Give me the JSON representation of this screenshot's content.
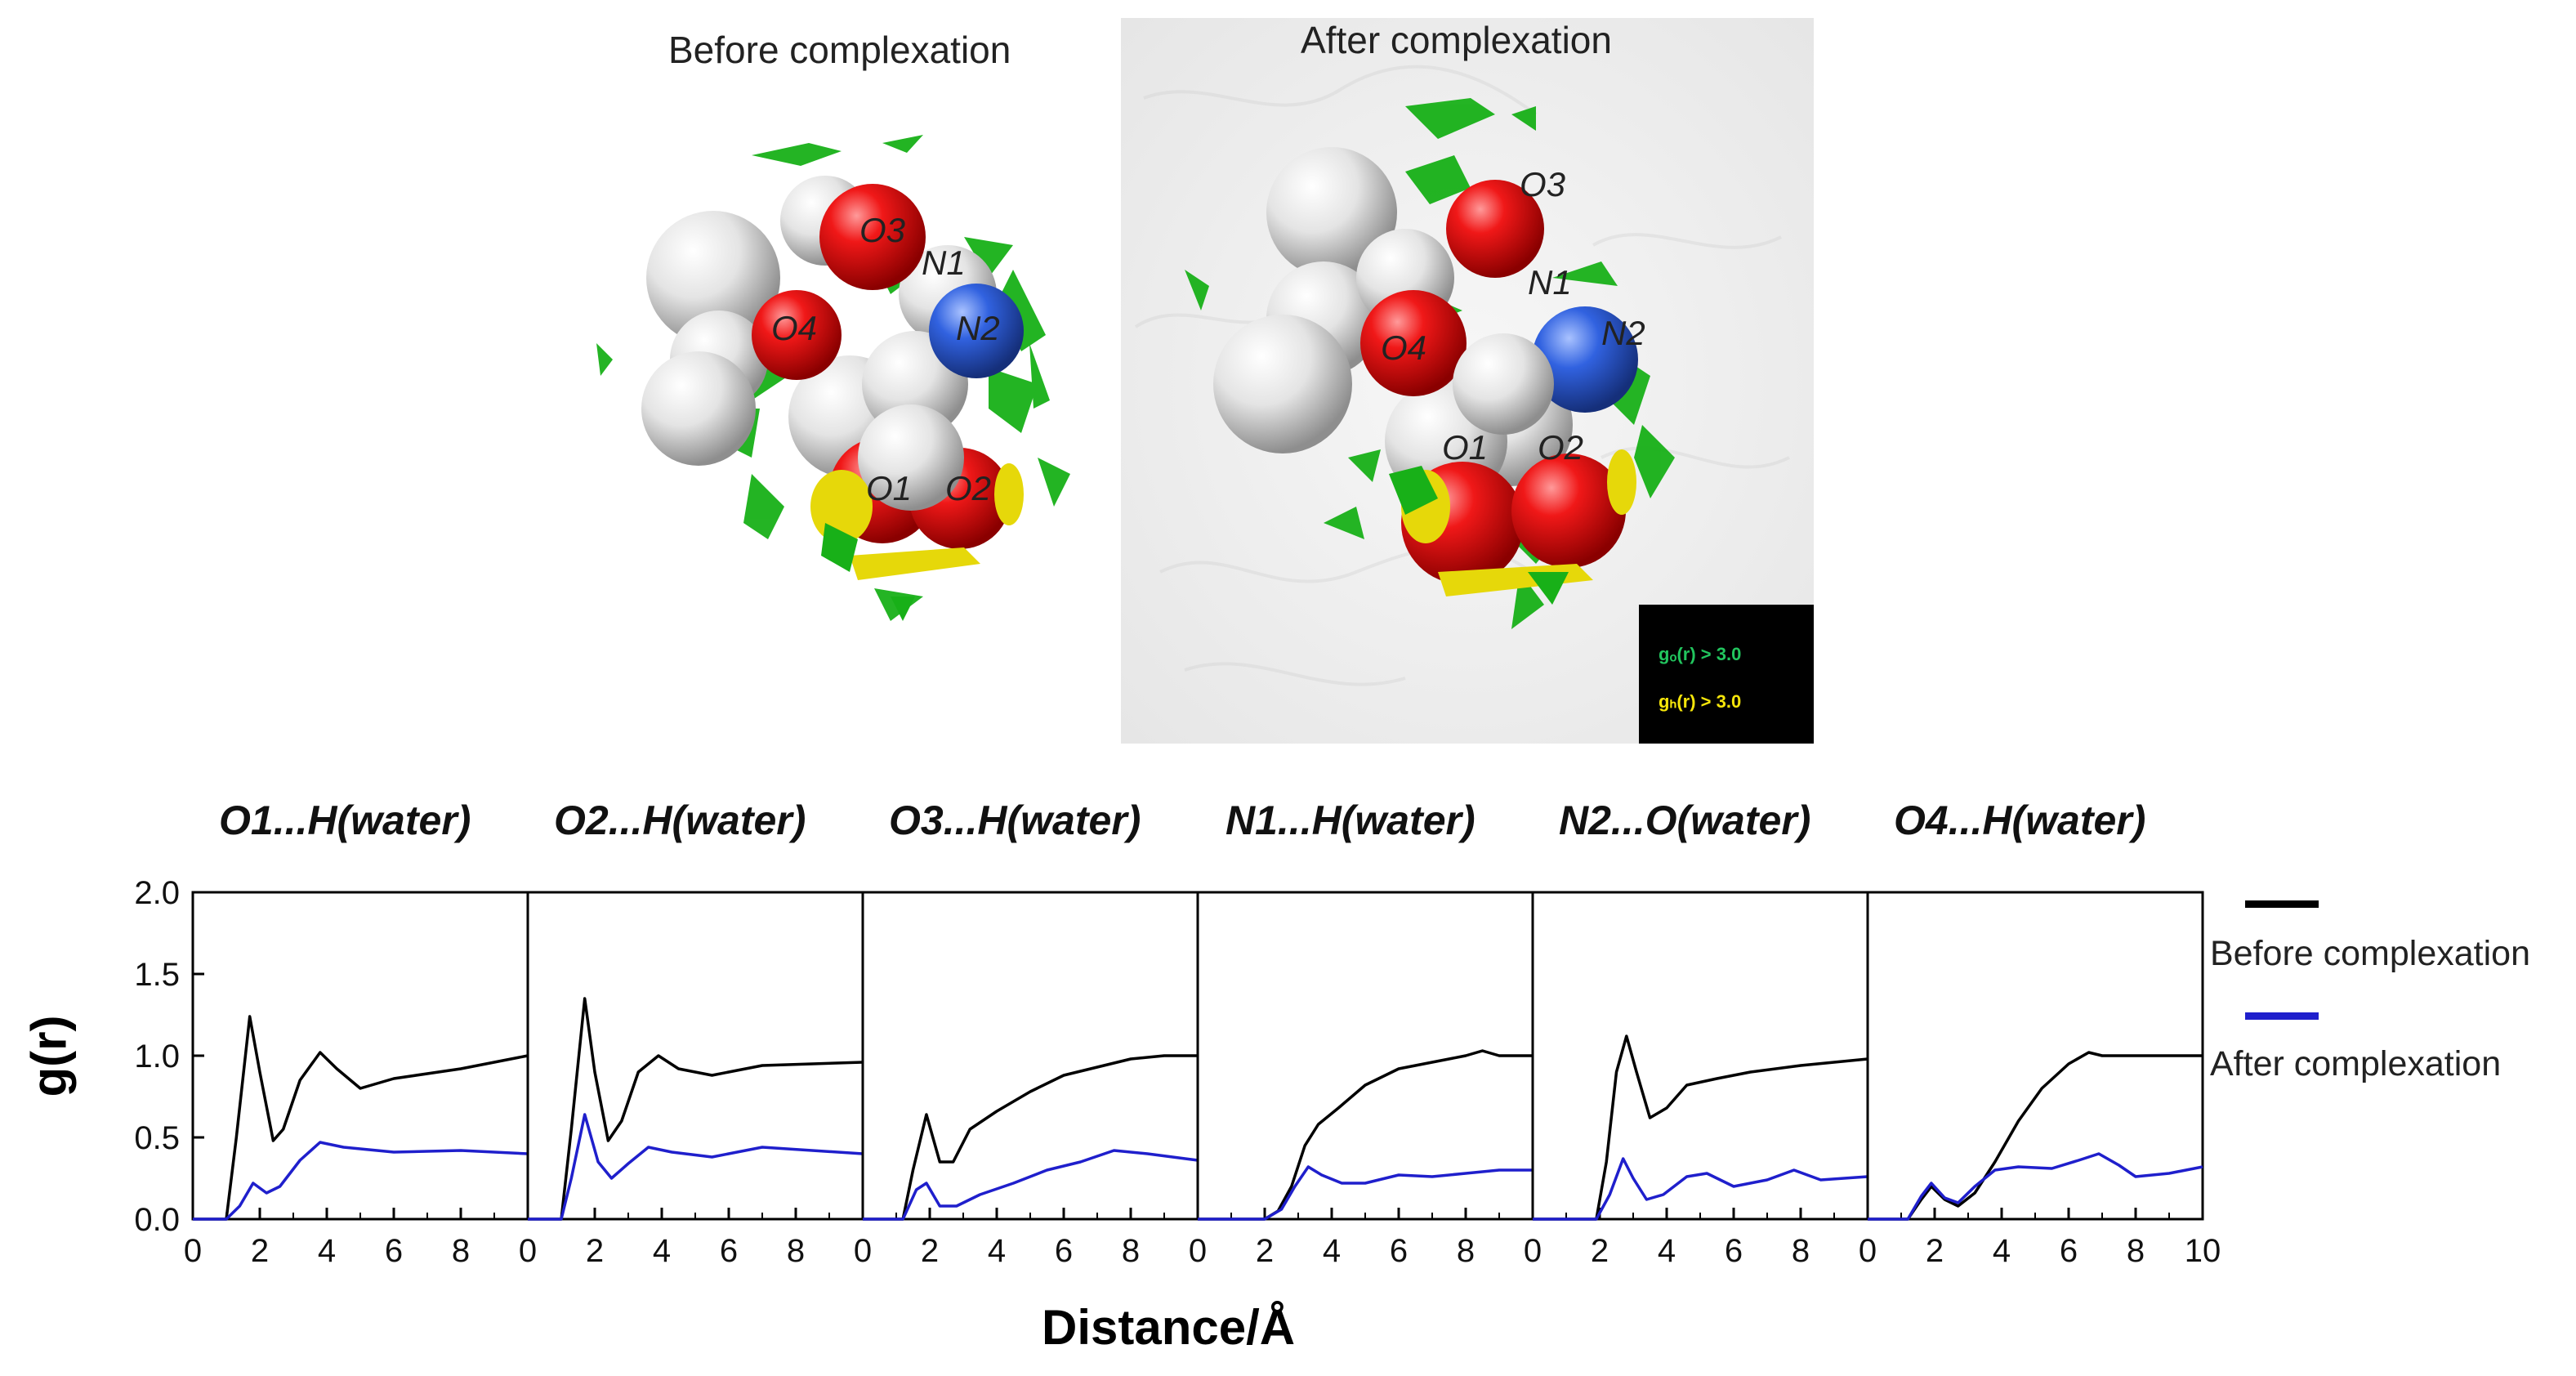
{
  "molecule_images": {
    "before_title": "Before complexation",
    "after_title": "After complexation",
    "atom_labels": [
      "O1",
      "O2",
      "O3",
      "O4",
      "N1",
      "N2"
    ],
    "inset_legend": [
      {
        "text": "gₒ(r) > 3.0",
        "color": "#22c55e"
      },
      {
        "text": "gₕ(r) > 3.0",
        "color": "#f5e50a"
      }
    ],
    "colors": {
      "oxygen": "#e01010",
      "nitrogen": "#2e5fd8",
      "hydrogen": "#e8e8e8",
      "iso_green": "#18b018",
      "iso_yellow": "#e6d80a"
    }
  },
  "chart_data": {
    "type": "line",
    "ylabel": "g(r)",
    "xlabel": "Distance/Å",
    "ylim": [
      0,
      2.0
    ],
    "yticks": [
      "0.0",
      "0.5",
      "1.0",
      "1.5",
      "2.0"
    ],
    "xlim": [
      0,
      10
    ],
    "xticks": [
      "0",
      "2",
      "4",
      "6",
      "8",
      "10"
    ],
    "legend": {
      "placement": "right",
      "entries": [
        {
          "name": "Before complexation",
          "color": "#000000"
        },
        {
          "name": "After complexation",
          "color": "#1f1fcc"
        }
      ]
    },
    "panels": [
      {
        "title": "O1...H(water)",
        "series": [
          {
            "name": "Before complexation",
            "x": [
              0,
              1.0,
              1.3,
              1.7,
              2.0,
              2.4,
              2.7,
              3.2,
              3.8,
              4.3,
              5.0,
              6.0,
              8.0,
              10.0
            ],
            "y": [
              0,
              0,
              0.5,
              1.24,
              0.9,
              0.48,
              0.55,
              0.85,
              1.02,
              0.92,
              0.8,
              0.86,
              0.92,
              1.0
            ]
          },
          {
            "name": "After complexation",
            "x": [
              0,
              1.0,
              1.4,
              1.8,
              2.2,
              2.6,
              3.2,
              3.8,
              4.5,
              6.0,
              8.0,
              10.0
            ],
            "y": [
              0,
              0,
              0.08,
              0.22,
              0.16,
              0.2,
              0.36,
              0.47,
              0.44,
              0.41,
              0.42,
              0.4
            ]
          }
        ]
      },
      {
        "title": "O2...H(water)",
        "series": [
          {
            "name": "Before complexation",
            "x": [
              0,
              1.0,
              1.3,
              1.7,
              2.0,
              2.4,
              2.8,
              3.3,
              3.9,
              4.5,
              5.5,
              7.0,
              10.0
            ],
            "y": [
              0,
              0,
              0.55,
              1.35,
              0.9,
              0.48,
              0.6,
              0.9,
              1.0,
              0.92,
              0.88,
              0.94,
              0.96
            ]
          },
          {
            "name": "After complexation",
            "x": [
              0,
              1.0,
              1.3,
              1.7,
              2.1,
              2.5,
              3.0,
              3.6,
              4.3,
              5.5,
              7.0,
              10.0
            ],
            "y": [
              0,
              0,
              0.25,
              0.64,
              0.35,
              0.25,
              0.34,
              0.44,
              0.41,
              0.38,
              0.44,
              0.4
            ]
          }
        ]
      },
      {
        "title": "O3...H(water)",
        "series": [
          {
            "name": "Before complexation",
            "x": [
              0,
              1.2,
              1.5,
              1.9,
              2.3,
              2.7,
              3.2,
              4.0,
              5.0,
              6.0,
              7.0,
              8.0,
              9.0,
              10.0
            ],
            "y": [
              0,
              0,
              0.3,
              0.64,
              0.35,
              0.35,
              0.55,
              0.66,
              0.78,
              0.88,
              0.93,
              0.98,
              1.0,
              1.0
            ]
          },
          {
            "name": "After complexation",
            "x": [
              0,
              1.2,
              1.6,
              1.9,
              2.3,
              2.8,
              3.5,
              4.5,
              5.5,
              6.5,
              7.5,
              8.5,
              10.0
            ],
            "y": [
              0,
              0,
              0.18,
              0.22,
              0.08,
              0.08,
              0.15,
              0.22,
              0.3,
              0.35,
              0.42,
              0.4,
              0.36
            ]
          }
        ]
      },
      {
        "title": "N1...H(water)",
        "series": [
          {
            "name": "Before complexation",
            "x": [
              0,
              2.0,
              2.4,
              2.8,
              3.2,
              3.6,
              4.2,
              5.0,
              6.0,
              7.0,
              8.0,
              8.5,
              9.0,
              10.0
            ],
            "y": [
              0,
              0,
              0.05,
              0.2,
              0.45,
              0.58,
              0.68,
              0.82,
              0.92,
              0.96,
              1.0,
              1.03,
              1.0,
              1.0
            ]
          },
          {
            "name": "After complexation",
            "x": [
              0,
              2.0,
              2.5,
              2.9,
              3.3,
              3.7,
              4.3,
              5.0,
              6.0,
              7.0,
              8.0,
              9.0,
              10.0
            ],
            "y": [
              0,
              0,
              0.06,
              0.2,
              0.32,
              0.27,
              0.22,
              0.22,
              0.27,
              0.26,
              0.28,
              0.3,
              0.3
            ]
          }
        ]
      },
      {
        "title": "N2...O(water)",
        "series": [
          {
            "name": "Before complexation",
            "x": [
              0,
              1.9,
              2.2,
              2.5,
              2.8,
              3.1,
              3.5,
              4.0,
              4.6,
              5.5,
              6.5,
              8.0,
              10.0
            ],
            "y": [
              0,
              0,
              0.35,
              0.9,
              1.12,
              0.9,
              0.62,
              0.68,
              0.82,
              0.86,
              0.9,
              0.94,
              0.98
            ]
          },
          {
            "name": "After complexation",
            "x": [
              0,
              1.9,
              2.3,
              2.7,
              3.0,
              3.4,
              3.9,
              4.6,
              5.2,
              6.0,
              7.0,
              7.8,
              8.6,
              10.0
            ],
            "y": [
              0,
              0,
              0.15,
              0.37,
              0.25,
              0.12,
              0.15,
              0.26,
              0.28,
              0.2,
              0.24,
              0.3,
              0.24,
              0.26
            ]
          }
        ]
      },
      {
        "title": "O4...H(water)",
        "series": [
          {
            "name": "Before complexation",
            "x": [
              0,
              1.2,
              1.6,
              1.9,
              2.3,
              2.7,
              3.2,
              3.8,
              4.5,
              5.2,
              6.0,
              6.6,
              7.0,
              8.0,
              10.0
            ],
            "y": [
              0,
              0,
              0.12,
              0.2,
              0.12,
              0.08,
              0.16,
              0.35,
              0.6,
              0.8,
              0.95,
              1.02,
              1.0,
              1.0,
              1.0
            ]
          },
          {
            "name": "After complexation",
            "x": [
              0,
              1.2,
              1.6,
              1.9,
              2.3,
              2.7,
              3.2,
              3.8,
              4.5,
              5.5,
              6.3,
              6.9,
              7.5,
              8.0,
              9.0,
              10.0
            ],
            "y": [
              0,
              0,
              0.14,
              0.22,
              0.13,
              0.1,
              0.2,
              0.3,
              0.32,
              0.31,
              0.36,
              0.4,
              0.33,
              0.26,
              0.28,
              0.32
            ]
          }
        ]
      }
    ]
  }
}
